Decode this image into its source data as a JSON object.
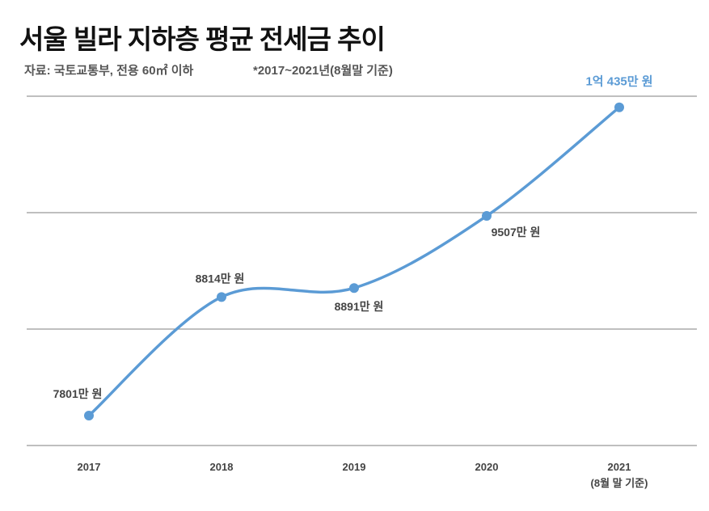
{
  "chart_data": {
    "type": "line",
    "title": "서울 빌라 지하층 평균 전세금 추이",
    "source": "자료: 국토교통부, 전용 60㎡ 이하",
    "note": "*2017~2021년(8월말 기준)",
    "categories": [
      "2017",
      "2018",
      "2019",
      "2020",
      "2021"
    ],
    "category_sublabels": [
      "",
      "",
      "",
      "",
      "(8월 말 기준)"
    ],
    "series": [
      {
        "name": "평균 전세금(만 원)",
        "values": [
          7801,
          8814,
          8891,
          9507,
          10435
        ]
      }
    ],
    "data_labels": [
      "7801만 원",
      "8814만 원",
      "8891만 원",
      "9507만 원",
      "1억 435만 원"
    ],
    "ylabel": "",
    "xlabel": "",
    "ylim": [
      7545,
      10530
    ],
    "grid": true,
    "gridline_count": 4,
    "line_color": "#5b9bd5",
    "highlight_color": "#5b9bd5"
  }
}
